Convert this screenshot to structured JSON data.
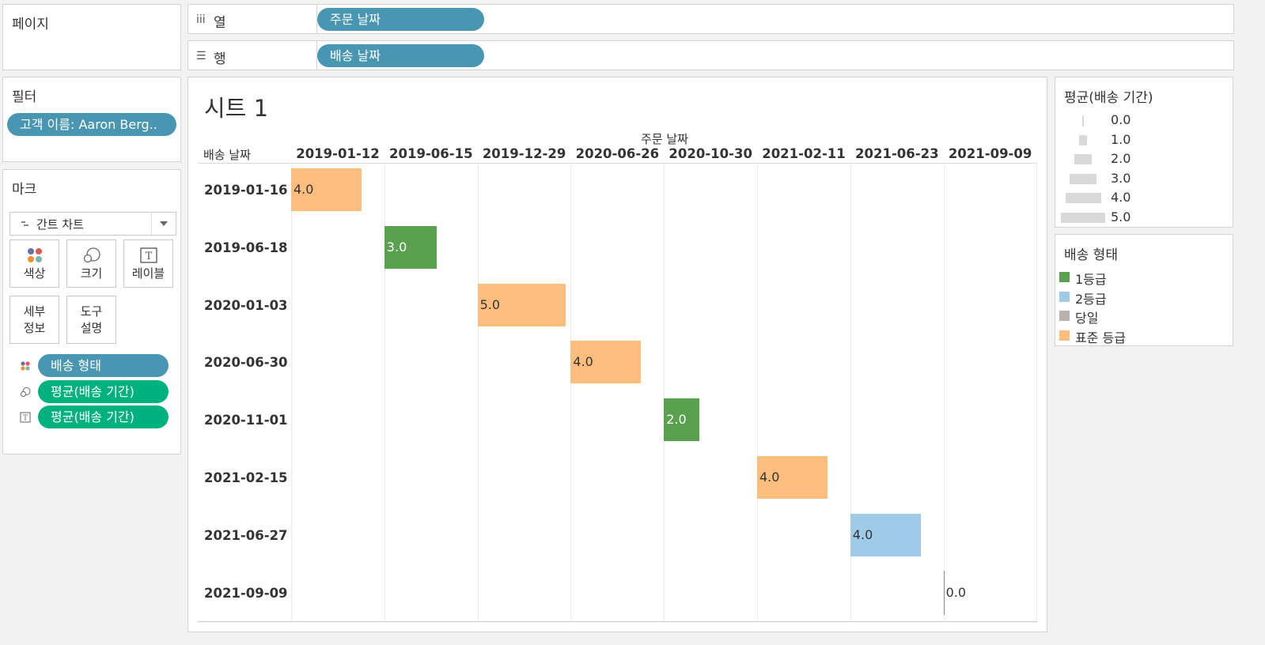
{
  "cards": {
    "pages_title": "페이지",
    "filters_title": "필터",
    "filter_pill": "고객 이름: Aaron Berg..",
    "marks_title": "마크"
  },
  "shelves": {
    "columns_label": "열",
    "columns_pill": "주문 날짜",
    "rows_label": "행",
    "rows_pill": "배송 날짜"
  },
  "marks": {
    "type": "간트 차트",
    "buttons": [
      "색상",
      "크기",
      "레이블",
      "세부\n정보",
      "도구\n설명"
    ],
    "fields": [
      "배송 형태",
      "평균(배송 기간)",
      "평균(배송 기간)"
    ]
  },
  "view": {
    "sheet_title": "시트 1",
    "col_field_title": "주문 날짜",
    "row_field_title": "배송 날짜"
  },
  "size_legend": {
    "title": "평균(배송 기간)",
    "items": [
      "0.0",
      "1.0",
      "2.0",
      "3.0",
      "4.0",
      "5.0"
    ]
  },
  "color_legend": {
    "title": "배송 형태",
    "items": [
      {
        "label": "1등급",
        "color": "#59a14f"
      },
      {
        "label": "2등급",
        "color": "#a0cbe8"
      },
      {
        "label": "당일",
        "color": "#bab0ac"
      },
      {
        "label": "표준 등급",
        "color": "#ffbe7d"
      }
    ]
  },
  "chart_data": {
    "type": "gantt",
    "columns": [
      "2019-01-12",
      "2019-06-15",
      "2019-12-29",
      "2020-06-26",
      "2020-10-30",
      "2021-02-11",
      "2021-06-23",
      "2021-09-09"
    ],
    "rows": [
      "2019-01-16",
      "2019-06-18",
      "2020-01-03",
      "2020-06-30",
      "2020-11-01",
      "2021-02-15",
      "2021-06-27",
      "2021-09-09"
    ],
    "marks": [
      {
        "order_date": "2019-01-12",
        "ship_date": "2019-01-16",
        "ship_mode": "표준 등급",
        "avg_days": 4.0,
        "label": "4.0"
      },
      {
        "order_date": "2019-06-15",
        "ship_date": "2019-06-18",
        "ship_mode": "1등급",
        "avg_days": 3.0,
        "label": "3.0"
      },
      {
        "order_date": "2019-12-29",
        "ship_date": "2020-01-03",
        "ship_mode": "표준 등급",
        "avg_days": 5.0,
        "label": "5.0"
      },
      {
        "order_date": "2020-06-26",
        "ship_date": "2020-06-30",
        "ship_mode": "표준 등급",
        "avg_days": 4.0,
        "label": "4.0"
      },
      {
        "order_date": "2020-10-30",
        "ship_date": "2020-11-01",
        "ship_mode": "1등급",
        "avg_days": 2.0,
        "label": "2.0"
      },
      {
        "order_date": "2021-02-11",
        "ship_date": "2021-02-15",
        "ship_mode": "표준 등급",
        "avg_days": 4.0,
        "label": "4.0"
      },
      {
        "order_date": "2021-06-23",
        "ship_date": "2021-06-27",
        "ship_mode": "2등급",
        "avg_days": 4.0,
        "label": "4.0"
      },
      {
        "order_date": "2021-09-09",
        "ship_date": "2021-09-09",
        "ship_mode": "당일",
        "avg_days": 0.0,
        "label": "0.0"
      }
    ]
  }
}
